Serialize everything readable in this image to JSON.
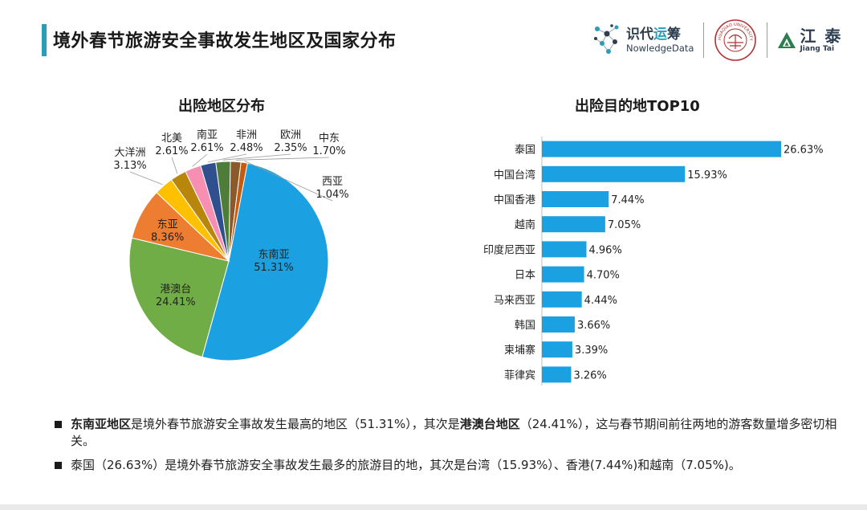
{
  "header": {
    "title": "境外春节旅游安全事故发生地区及国家分布",
    "logo_kd_cn_part1": "识代",
    "logo_kd_cn_part2": "运",
    "logo_kd_cn_part3": "筹",
    "logo_kd_en": "NowledgeData",
    "logo_jt_cn": "江 泰",
    "logo_jt_en": "Jiang Tai",
    "seal_text": "HUAQIAO UNIVERSITY"
  },
  "colors": {
    "accent": "#2a9db8",
    "bar": "#1ba1e2",
    "pie": [
      "#1ba1e2",
      "#70ad47",
      "#ed7d31",
      "#ffc000",
      "#b8860b",
      "#f78fb3",
      "#2f4f8f",
      "#4e7d3a",
      "#8b5a2b",
      "#c55a11"
    ]
  },
  "chart_data": [
    {
      "type": "pie",
      "title": "出险地区分布",
      "slices": [
        {
          "label": "东南亚",
          "value": 51.31,
          "value_label": "51.31%"
        },
        {
          "label": "港澳台",
          "value": 24.41,
          "value_label": "24.41%"
        },
        {
          "label": "东亚",
          "value": 8.36,
          "value_label": "8.36%"
        },
        {
          "label": "大洋洲",
          "value": 3.13,
          "value_label": "3.13%"
        },
        {
          "label": "北美",
          "value": 2.61,
          "value_label": "2.61%"
        },
        {
          "label": "南亚",
          "value": 2.61,
          "value_label": "2.61%"
        },
        {
          "label": "非洲",
          "value": 2.48,
          "value_label": "2.48%"
        },
        {
          "label": "欧洲",
          "value": 2.35,
          "value_label": "2.35%"
        },
        {
          "label": "中东",
          "value": 1.7,
          "value_label": "1.70%"
        },
        {
          "label": "西亚",
          "value": 1.04,
          "value_label": "1.04%"
        }
      ]
    },
    {
      "type": "bar",
      "orientation": "horizontal",
      "title": "出险目的地TOP10",
      "categories": [
        "泰国",
        "中国台湾",
        "中国香港",
        "越南",
        "印度尼西亚",
        "日本",
        "马来西亚",
        "韩国",
        "柬埔寨",
        "菲律宾"
      ],
      "values": [
        26.63,
        15.93,
        7.44,
        7.05,
        4.96,
        4.7,
        4.44,
        3.66,
        3.39,
        3.26
      ],
      "value_labels": [
        "26.63%",
        "15.93%",
        "7.44%",
        "7.05%",
        "4.96%",
        "4.70%",
        "4.44%",
        "3.66%",
        "3.39%",
        "3.26%"
      ],
      "xlim": [
        0,
        30
      ]
    }
  ],
  "notes": [
    {
      "bold1": "东南亚地区",
      "text1": "是境外春节旅游安全事故发生最高的地区（51.31%），其次是",
      "bold2": "港澳台地区",
      "text2": "（24.41%），这与春节期间前往两地的游客数量增多密切相关。"
    },
    {
      "text": "泰国（26.63%）是境外春节旅游安全事故发生最多的旅游目的地，其次是台湾（15.93%）、香港(7.44%)和越南（7.05%)。"
    }
  ]
}
